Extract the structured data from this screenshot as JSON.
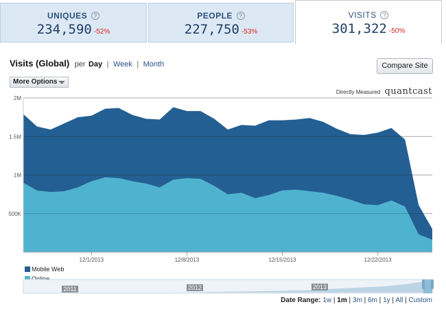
{
  "metrics": [
    {
      "label": "UNIQUES",
      "help": "?",
      "value": "234,590",
      "change": "-52%"
    },
    {
      "label": "PEOPLE",
      "help": "?",
      "value": "227,750",
      "change": "-53%"
    },
    {
      "label": "VISITS",
      "help": "?",
      "value": "301,322",
      "change": "-50%"
    }
  ],
  "header": {
    "title": "Visits (Global)",
    "per": "per",
    "periods": [
      "Day",
      "Week",
      "Month"
    ],
    "active_period": "Day",
    "separator": "|",
    "compare_button": "Compare Site",
    "more_options": "More Options",
    "directly_measured": "Directly Measured",
    "brand": "quantcast"
  },
  "chart_data": {
    "type": "area",
    "title": "",
    "xlabel": "",
    "ylabel": "",
    "ylim": [
      0,
      2000000
    ],
    "y_ticks": [
      "2M",
      "1.5M",
      "1M",
      "500K"
    ],
    "y_tick_values": [
      2000000,
      1500000,
      1000000,
      500000
    ],
    "x_ticks": [
      "12/1/2013",
      "12/8/2013",
      "12/15/2013",
      "12/22/2013"
    ],
    "x_tick_index": [
      5,
      12,
      19,
      26
    ],
    "grid": true,
    "stacked": true,
    "series": [
      {
        "name": "Online",
        "color": "#4fb3cf",
        "values": [
          900000,
          800000,
          780000,
          790000,
          840000,
          920000,
          970000,
          960000,
          920000,
          890000,
          840000,
          940000,
          960000,
          950000,
          860000,
          750000,
          770000,
          700000,
          740000,
          800000,
          810000,
          790000,
          770000,
          730000,
          680000,
          620000,
          610000,
          670000,
          590000,
          230000,
          160000
        ]
      },
      {
        "name": "Mobile Web",
        "color": "#245f93",
        "values": [
          890000,
          830000,
          810000,
          880000,
          910000,
          850000,
          890000,
          910000,
          860000,
          840000,
          880000,
          940000,
          870000,
          880000,
          870000,
          840000,
          880000,
          940000,
          970000,
          910000,
          910000,
          950000,
          920000,
          870000,
          850000,
          900000,
          940000,
          940000,
          870000,
          380000,
          140000
        ]
      }
    ],
    "legend": [
      "Mobile Web",
      "Online"
    ],
    "legend_position": "bottom-left"
  },
  "navigator": {
    "years": [
      "2011",
      "2012",
      "2013"
    ]
  },
  "date_range": {
    "label": "Date Range:",
    "options": [
      "1w",
      "1m",
      "3m",
      "6m",
      "1y",
      "All",
      "Custom"
    ],
    "active": "1m",
    "separator": "|"
  }
}
